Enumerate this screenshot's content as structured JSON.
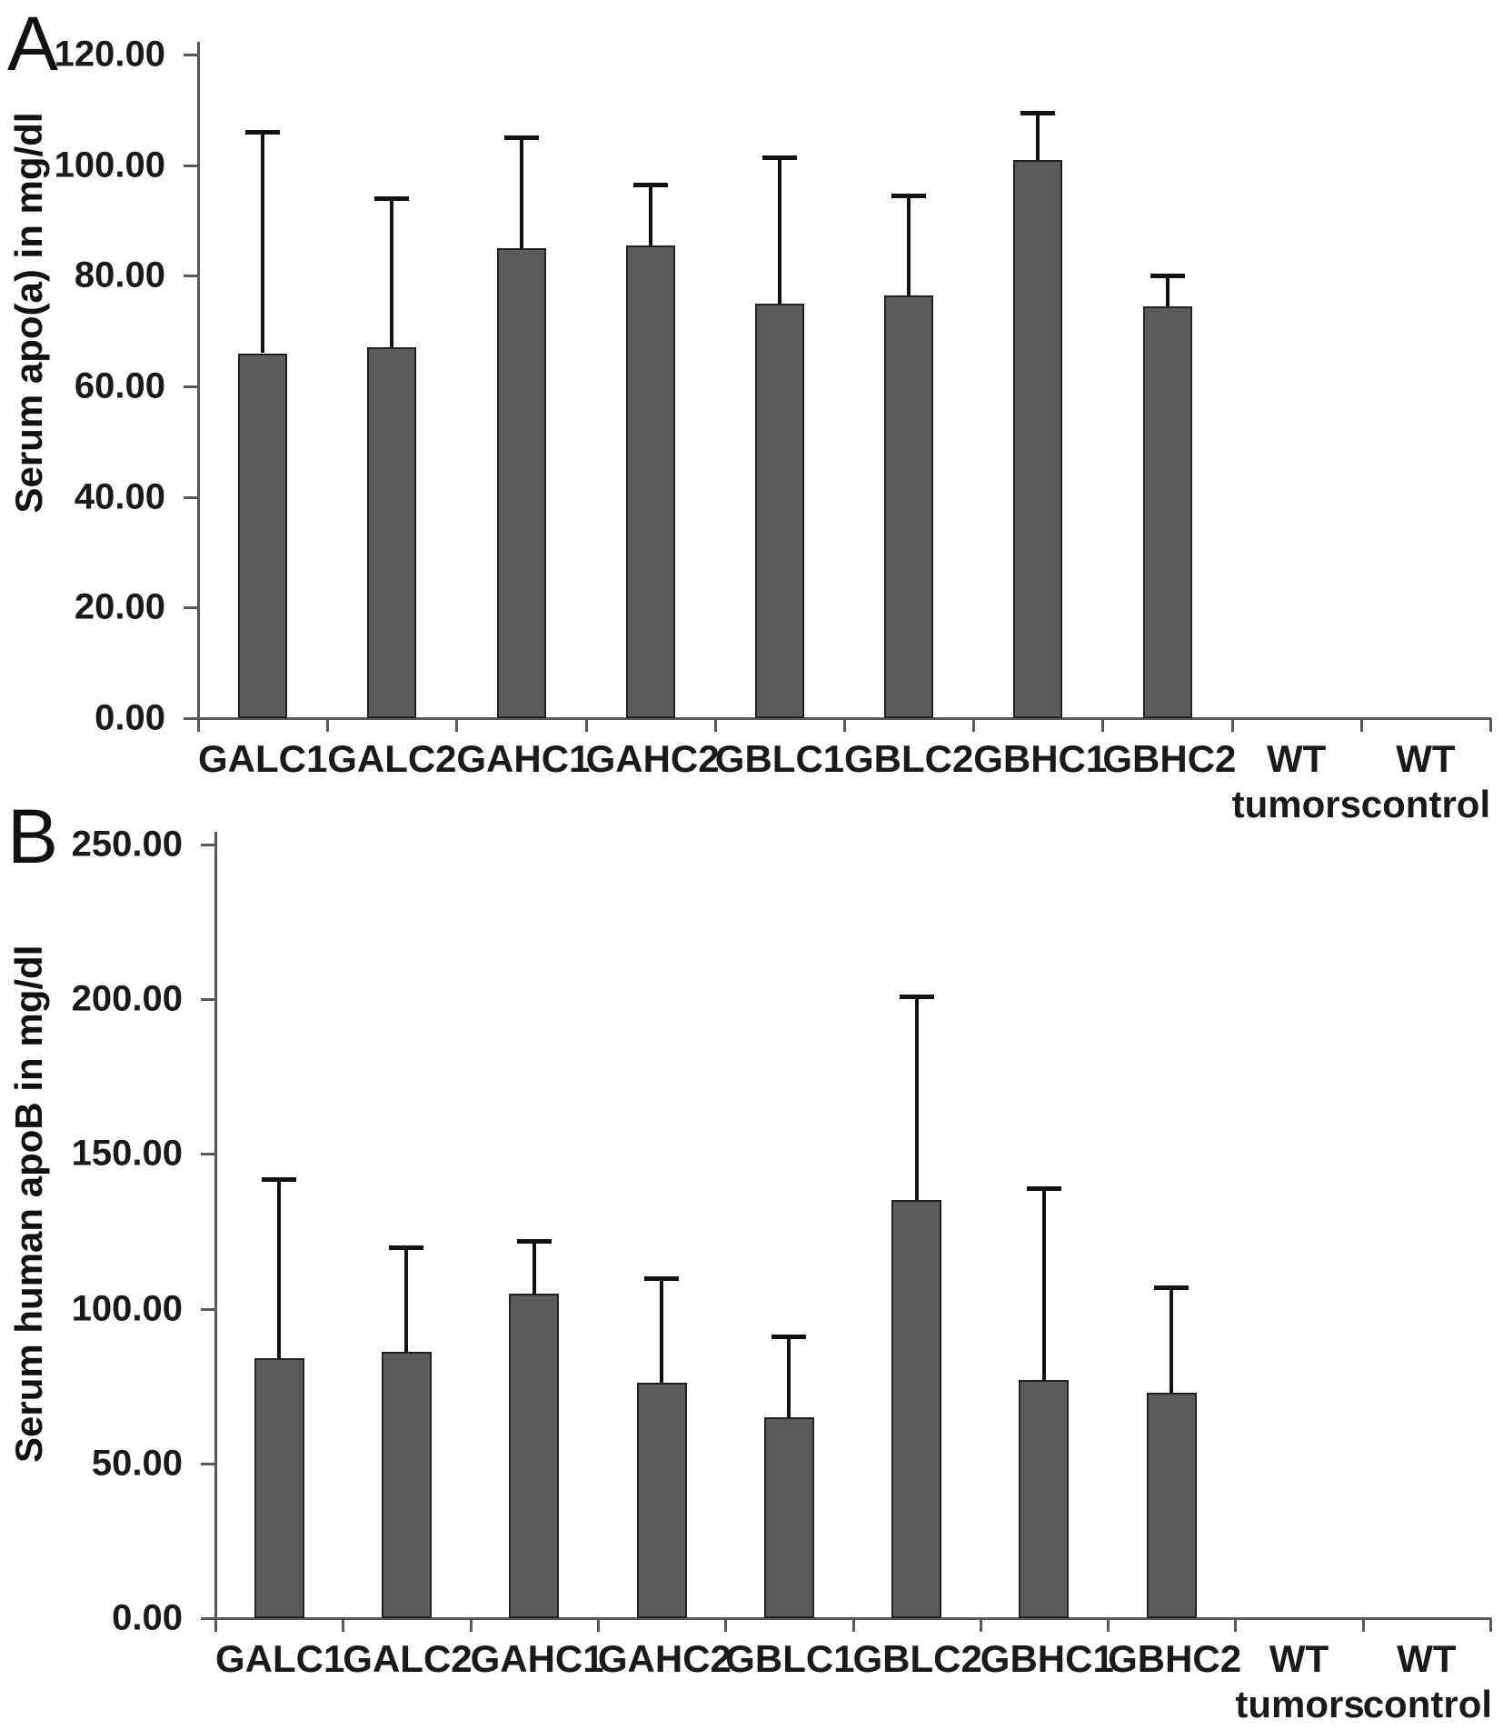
{
  "figure": {
    "background_color": "#ffffff",
    "bar_color": "#5b5b5b",
    "bar_border_color": "#222222",
    "axis_color": "#595959",
    "error_bar_color": "#111111",
    "text_color": "#1a1a1a"
  },
  "chart_data": [
    {
      "type": "bar",
      "panel_label": "A",
      "title": "",
      "xlabel": "",
      "ylabel": "Serum apo(a) in mg/dl",
      "categories": [
        "GALC1",
        "GALC2",
        "GAHC1",
        "GAHC2",
        "GBLC1",
        "GBLC2",
        "GBHC1",
        "GBHC2",
        "WT tumors",
        "WT control"
      ],
      "values": [
        66,
        67,
        85,
        85.5,
        75,
        76.5,
        101,
        74.5,
        0,
        0
      ],
      "error_plus": [
        40,
        27,
        20,
        11,
        26.5,
        18,
        8.5,
        5.5,
        0,
        0
      ],
      "ylim": [
        0,
        120
      ],
      "ytick_interval": 20,
      "ytick_labels": [
        "120.00",
        "100.00",
        "80.00",
        "60.00",
        "40.00",
        "20.00",
        "0.00"
      ],
      "grid": false,
      "legend": "none",
      "error_bars": "upper only, SD whiskers with caps"
    },
    {
      "type": "bar",
      "panel_label": "B",
      "title": "",
      "xlabel": "",
      "ylabel": "Serum human apoB in mg/dl",
      "categories": [
        "GALC1",
        "GALC2",
        "GAHC1",
        "GAHC2",
        "GBLC1",
        "GBLC2",
        "GBHC1",
        "GBHC2",
        "WT tumors",
        "WT control"
      ],
      "values": [
        84,
        86,
        105,
        76,
        65,
        135,
        77,
        73,
        0,
        0
      ],
      "error_plus": [
        58,
        34,
        17,
        34,
        26,
        66,
        62,
        34,
        0,
        0
      ],
      "ylim": [
        0,
        250
      ],
      "ytick_interval": 50,
      "ytick_labels": [
        "250.00",
        "200.00",
        "150.00",
        "100.00",
        "50.00",
        "0.00"
      ],
      "grid": false,
      "legend": "none",
      "error_bars": "upper only, SD whiskers with caps"
    }
  ]
}
